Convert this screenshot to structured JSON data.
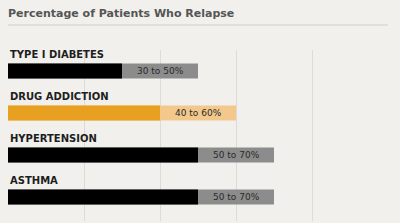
{
  "chart_data": {
    "type": "bar",
    "title": "Percentage of Patients Who Relapse",
    "orientation": "horizontal",
    "categories": [
      "TYPE I DIABETES",
      "DRUG ADDICTION",
      "HYPERTENSION",
      "ASTHMA"
    ],
    "series": [
      {
        "values": [
          50,
          60,
          70,
          70
        ],
        "colors": [
          "#8c8c8c",
          "#f3c88c",
          "#8c8c8c",
          "#8c8c8c"
        ]
      },
      {
        "values": [
          30,
          40,
          50,
          50
        ],
        "colors": [
          "#000000",
          "#e8a020",
          "#000000",
          "#000000"
        ]
      }
    ],
    "value_labels": [
      "30 to 50%",
      "40 to 60%",
      "50 to 70%",
      "50 to 70%"
    ],
    "data_labels": true,
    "xlim": [
      0,
      100
    ],
    "xticks": [
      0,
      20,
      40,
      60,
      80,
      100
    ],
    "grid": true,
    "tick_labels": false
  }
}
